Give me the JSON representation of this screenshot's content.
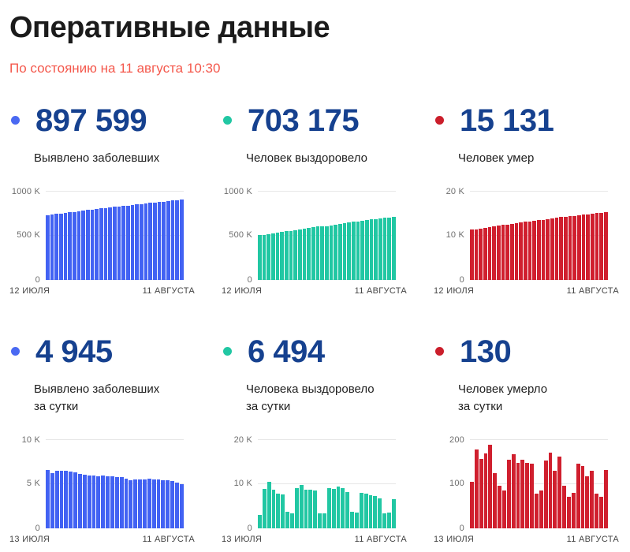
{
  "page": {
    "title": "Оперативные данные",
    "subtitle": "По состоянию на 11 августа 10:30"
  },
  "colors": {
    "title_text": "#1b1b1b",
    "subtitle_coral": "#f4584c",
    "stat_value_navy": "#16418f",
    "bar_blue": "#4262f3",
    "bar_teal": "#21c7a3",
    "bar_red": "#d01f2e"
  },
  "cards": [
    {
      "value": "897 599",
      "label_line1": "Выявлено заболевших",
      "label_line2": "",
      "bullet_color": "#4a69f2"
    },
    {
      "value": "703 175",
      "label_line1": "Человек выздоровело",
      "label_line2": "",
      "bullet_color": "#21c7a3"
    },
    {
      "value": "15 131",
      "label_line1": "Человек умер",
      "label_line2": "",
      "bullet_color": "#cb1e2b"
    },
    {
      "value": "4 945",
      "label_line1": "Выявлено заболевших",
      "label_line2": "за сутки",
      "bullet_color": "#4a69f2"
    },
    {
      "value": "6 494",
      "label_line1": "Человека выздоровело",
      "label_line2": "за сутки",
      "bullet_color": "#21c7a3"
    },
    {
      "value": "130",
      "label_line1": "Человек умерло",
      "label_line2": "за сутки",
      "bullet_color": "#cb1e2b"
    }
  ],
  "chart_data": [
    {
      "type": "bar",
      "title": "Выявлено заболевших",
      "color": "#4262f3",
      "x_start_label": "12 ИЮЛЯ",
      "x_end_label": "11 АВГУСТА",
      "ylim": [
        0,
        1000000
      ],
      "yticks": [
        "1000 K",
        "500 K",
        "0"
      ],
      "values": [
        724511,
        731048,
        737197,
        743619,
        750047,
        756453,
        762821,
        769069,
        775178,
        781158,
        787098,
        792960,
        798808,
        804679,
        810521,
        816332,
        822097,
        827792,
        833300,
        838695,
        844170,
        849632,
        855059,
        860568,
        866057,
        871519,
        876913,
        882276,
        887536,
        892654,
        897599
      ]
    },
    {
      "type": "bar",
      "title": "Человек выздоровело",
      "color": "#21c7a3",
      "x_start_label": "12 ИЮЛЯ",
      "x_end_label": "11 АВГУСТА",
      "ylim": [
        0,
        1000000
      ],
      "yticks": [
        "1000 K",
        "500 K",
        "0"
      ],
      "values": [
        497633,
        500650,
        509492,
        519848,
        528410,
        536185,
        543735,
        547317,
        550649,
        559535,
        569300,
        577977,
        586542,
        595064,
        598313,
        601538,
        610463,
        619186,
        628578,
        637536,
        645690,
        649342,
        652753,
        660718,
        668491,
        675943,
        683200,
        689948,
        693272,
        696681,
        703175
      ]
    },
    {
      "type": "bar",
      "title": "Человек умер",
      "color": "#d01f2e",
      "x_start_label": "12 ИЮЛЯ",
      "x_end_label": "11 АВГУСТА",
      "ylim": [
        0,
        20000
      ],
      "yticks": [
        "20 K",
        "10 K",
        "0"
      ],
      "values": [
        11258,
        11362,
        11538,
        11694,
        11862,
        12049,
        12172,
        12267,
        12352,
        12506,
        12672,
        12818,
        12971,
        13117,
        13262,
        13339,
        13424,
        13575,
        13744,
        13873,
        14034,
        14129,
        14199,
        14278,
        14422,
        14561,
        14677,
        14796,
        14924,
        15001,
        15131
      ]
    },
    {
      "type": "bar",
      "title": "Выявлено заболевших за сутки",
      "color": "#4262f3",
      "x_start_label": "13 ИЮЛЯ",
      "x_end_label": "11 АВГУСТА",
      "ylim": [
        0,
        10000
      ],
      "yticks": [
        "10 K",
        "5 K",
        "0"
      ],
      "values": [
        6537,
        6149,
        6422,
        6428,
        6406,
        6368,
        6248,
        6109,
        5980,
        5940,
        5862,
        5848,
        5871,
        5842,
        5811,
        5765,
        5695,
        5508,
        5395,
        5475,
        5462,
        5427,
        5509,
        5489,
        5462,
        5394,
        5363,
        5260,
        5118,
        4945
      ]
    },
    {
      "type": "bar",
      "title": "Человека выздоровело за сутки",
      "color": "#21c7a3",
      "x_start_label": "13 ИЮЛЯ",
      "x_end_label": "11 АВГУСТА",
      "ylim": [
        0,
        20000
      ],
      "yticks": [
        "20 K",
        "10 K",
        "0"
      ],
      "values": [
        3017,
        8842,
        10356,
        8562,
        7775,
        7550,
        3582,
        3332,
        8886,
        9765,
        8677,
        8565,
        8522,
        3249,
        3225,
        8925,
        8723,
        9392,
        8958,
        8154,
        3652,
        3411,
        7965,
        7773,
        7452,
        7257,
        6748,
        3324,
        3409,
        6494
      ]
    },
    {
      "type": "bar",
      "title": "Человек умерло за сутки",
      "color": "#d01f2e",
      "x_start_label": "13 ИЮЛЯ",
      "x_end_label": "11 АВГУСТА",
      "ylim": [
        0,
        200
      ],
      "yticks": [
        "200",
        "100",
        "0"
      ],
      "values": [
        104,
        176,
        156,
        168,
        187,
        123,
        95,
        85,
        154,
        166,
        146,
        153,
        146,
        145,
        77,
        85,
        151,
        169,
        129,
        161,
        95,
        70,
        79,
        144,
        139,
        116,
        128,
        77,
        70,
        130
      ]
    }
  ]
}
